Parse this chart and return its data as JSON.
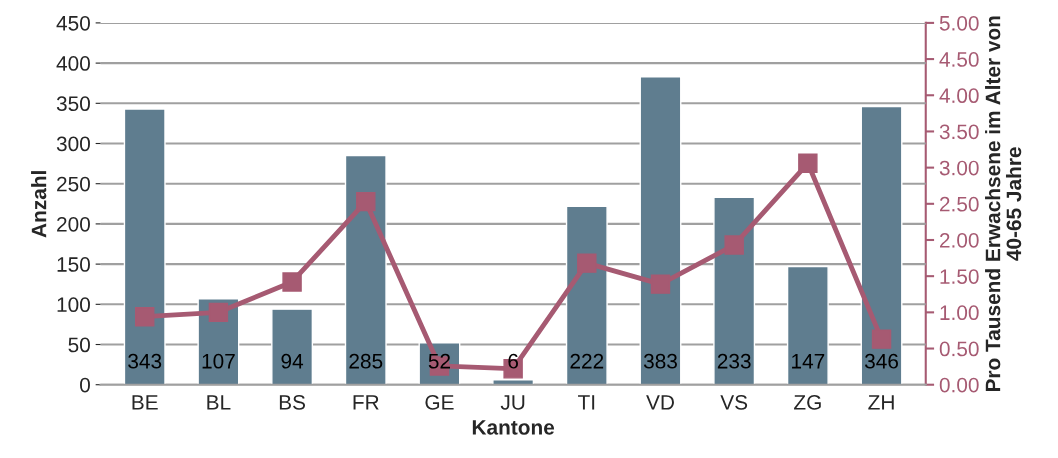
{
  "chart_data": {
    "type": "bar",
    "xlabel": "Kantone",
    "ylabel": "Anzahl",
    "y2label": "Pro Tausend Erwachsene im Alter von\n40-65 Jahre",
    "categories": [
      "BE",
      "BL",
      "BS",
      "FR",
      "GE",
      "JU",
      "TI",
      "VD",
      "VS",
      "ZG",
      "ZH"
    ],
    "series": [
      {
        "color": "#5f7d8f",
        "values": [
          343,
          107,
          94,
          285,
          52,
          6,
          222,
          383,
          233,
          147,
          346
        ],
        "value_labels": [
          "343",
          "107",
          "94",
          "285",
          "52",
          "6",
          "222",
          "383",
          "233",
          "147",
          "346"
        ]
      },
      {
        "type": "line",
        "axis": "y2",
        "color": "#a65a72",
        "marker": "square",
        "values": [
          0.94,
          1.0,
          1.42,
          2.53,
          0.26,
          0.22,
          1.68,
          1.39,
          1.93,
          3.06,
          0.63
        ]
      }
    ],
    "ylim": [
      0,
      450
    ],
    "yticks": [
      0,
      50,
      100,
      150,
      200,
      250,
      300,
      350,
      400,
      450
    ],
    "y2lim": [
      0,
      5
    ],
    "y2ticks": [
      {
        "value": 0,
        "label": "0.00"
      },
      {
        "value": 0.5,
        "label": "0.50"
      },
      {
        "value": 1,
        "label": "1.00"
      },
      {
        "value": 1.5,
        "label": "1.50"
      },
      {
        "value": 2,
        "label": "2.00"
      },
      {
        "value": 2.5,
        "label": "2.50"
      },
      {
        "value": 3,
        "label": "3.00"
      },
      {
        "value": 3.5,
        "label": "3.50"
      },
      {
        "value": 4,
        "label": "4.00"
      },
      {
        "value": 4.5,
        "label": "4.50"
      },
      {
        "value": 5,
        "label": "5.00"
      }
    ],
    "grid": "y",
    "legend": false
  }
}
